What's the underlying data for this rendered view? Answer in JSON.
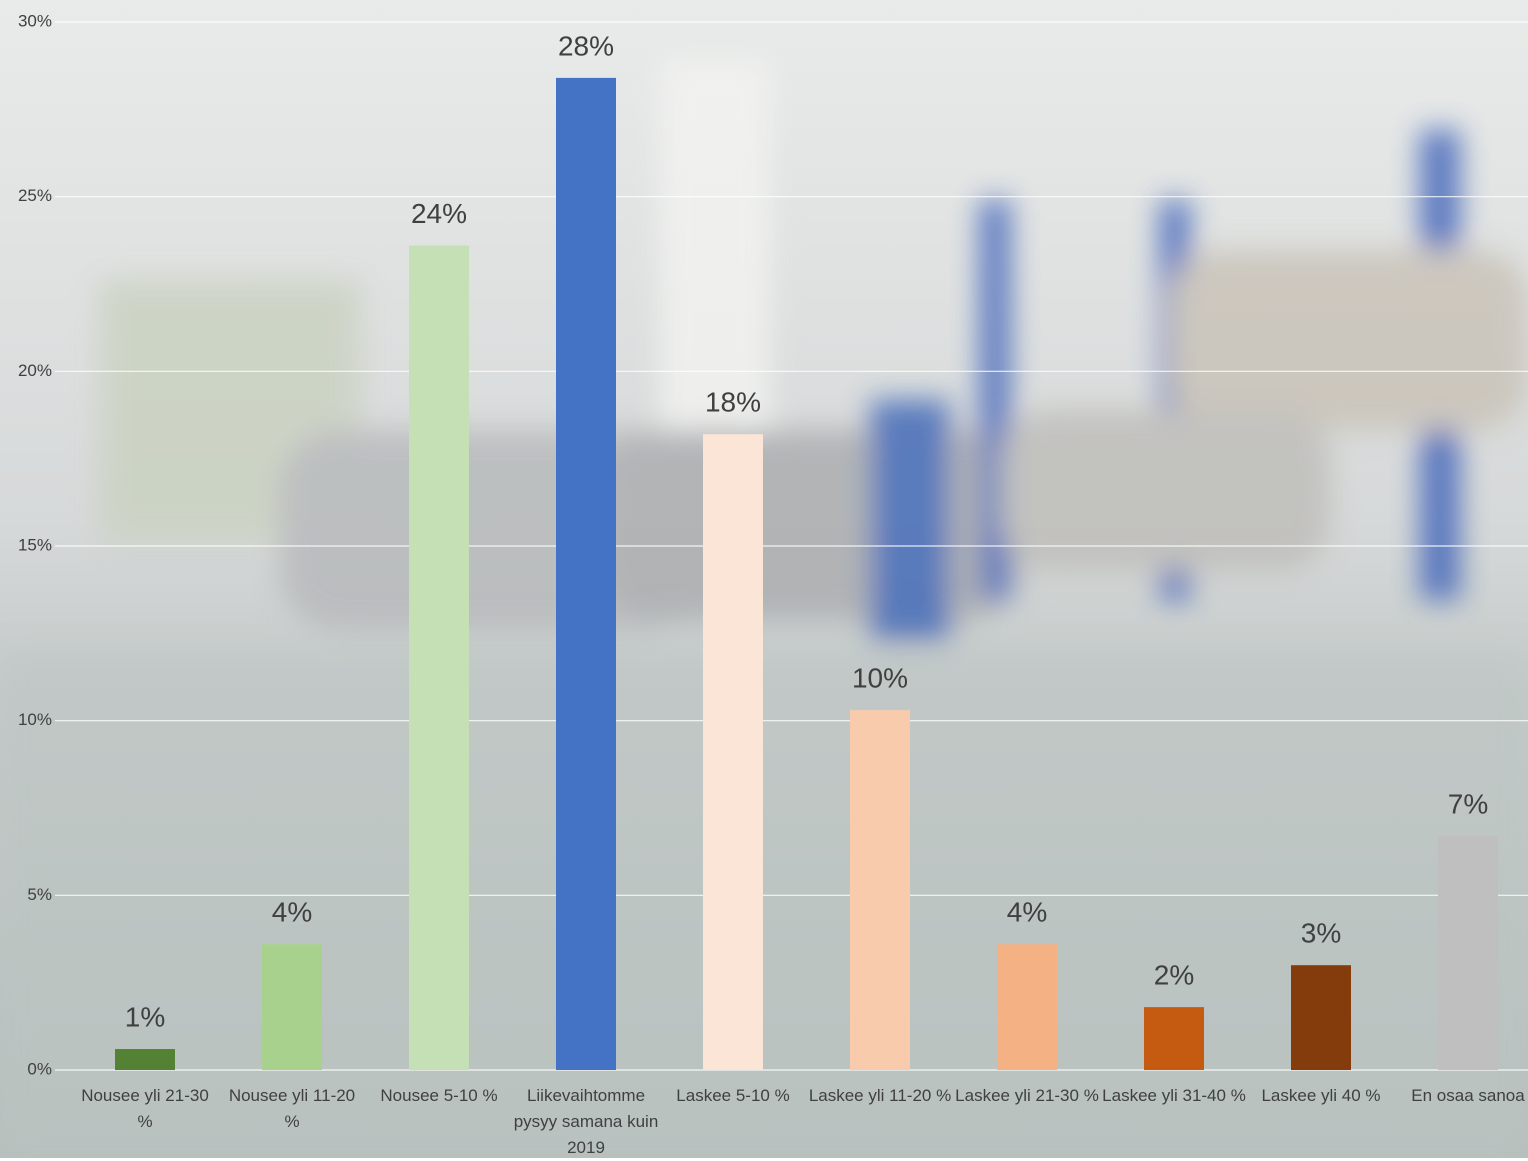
{
  "chart_data": {
    "type": "bar",
    "categories": [
      "Nousee yli 21-30 %",
      "Nousee yli 11-20 %",
      "Nousee 5-10 %",
      "Liikevaihtomme pysyy samana kuin 2019",
      "Laskee 5-10 %",
      "Laskee yli 11-20 %",
      "Laskee yli 21-30 %",
      "Laskee yli 31-40 %",
      "Laskee yli 40 %",
      "En osaa sanoa"
    ],
    "values": [
      0.6,
      3.6,
      23.6,
      28.4,
      18.2,
      10.3,
      3.6,
      1.8,
      3.0,
      6.7
    ],
    "value_labels": [
      "1%",
      "4%",
      "24%",
      "28%",
      "18%",
      "10%",
      "4%",
      "2%",
      "3%",
      "7%"
    ],
    "colors": [
      "#548235",
      "#a9d18e",
      "#c5e0b4",
      "#4472c4",
      "#fbe5d6",
      "#f8cbad",
      "#f4b183",
      "#c55a11",
      "#843c0c",
      "#bfbfbf"
    ],
    "ylim": [
      0,
      30
    ],
    "yticks": [
      {
        "value": 0,
        "label": "0%"
      },
      {
        "value": 5,
        "label": "5%"
      },
      {
        "value": 10,
        "label": "10%"
      },
      {
        "value": 15,
        "label": "15%"
      },
      {
        "value": 20,
        "label": "20%"
      },
      {
        "value": 25,
        "label": "25%"
      },
      {
        "value": 30,
        "label": "30%"
      }
    ],
    "grid": true
  }
}
